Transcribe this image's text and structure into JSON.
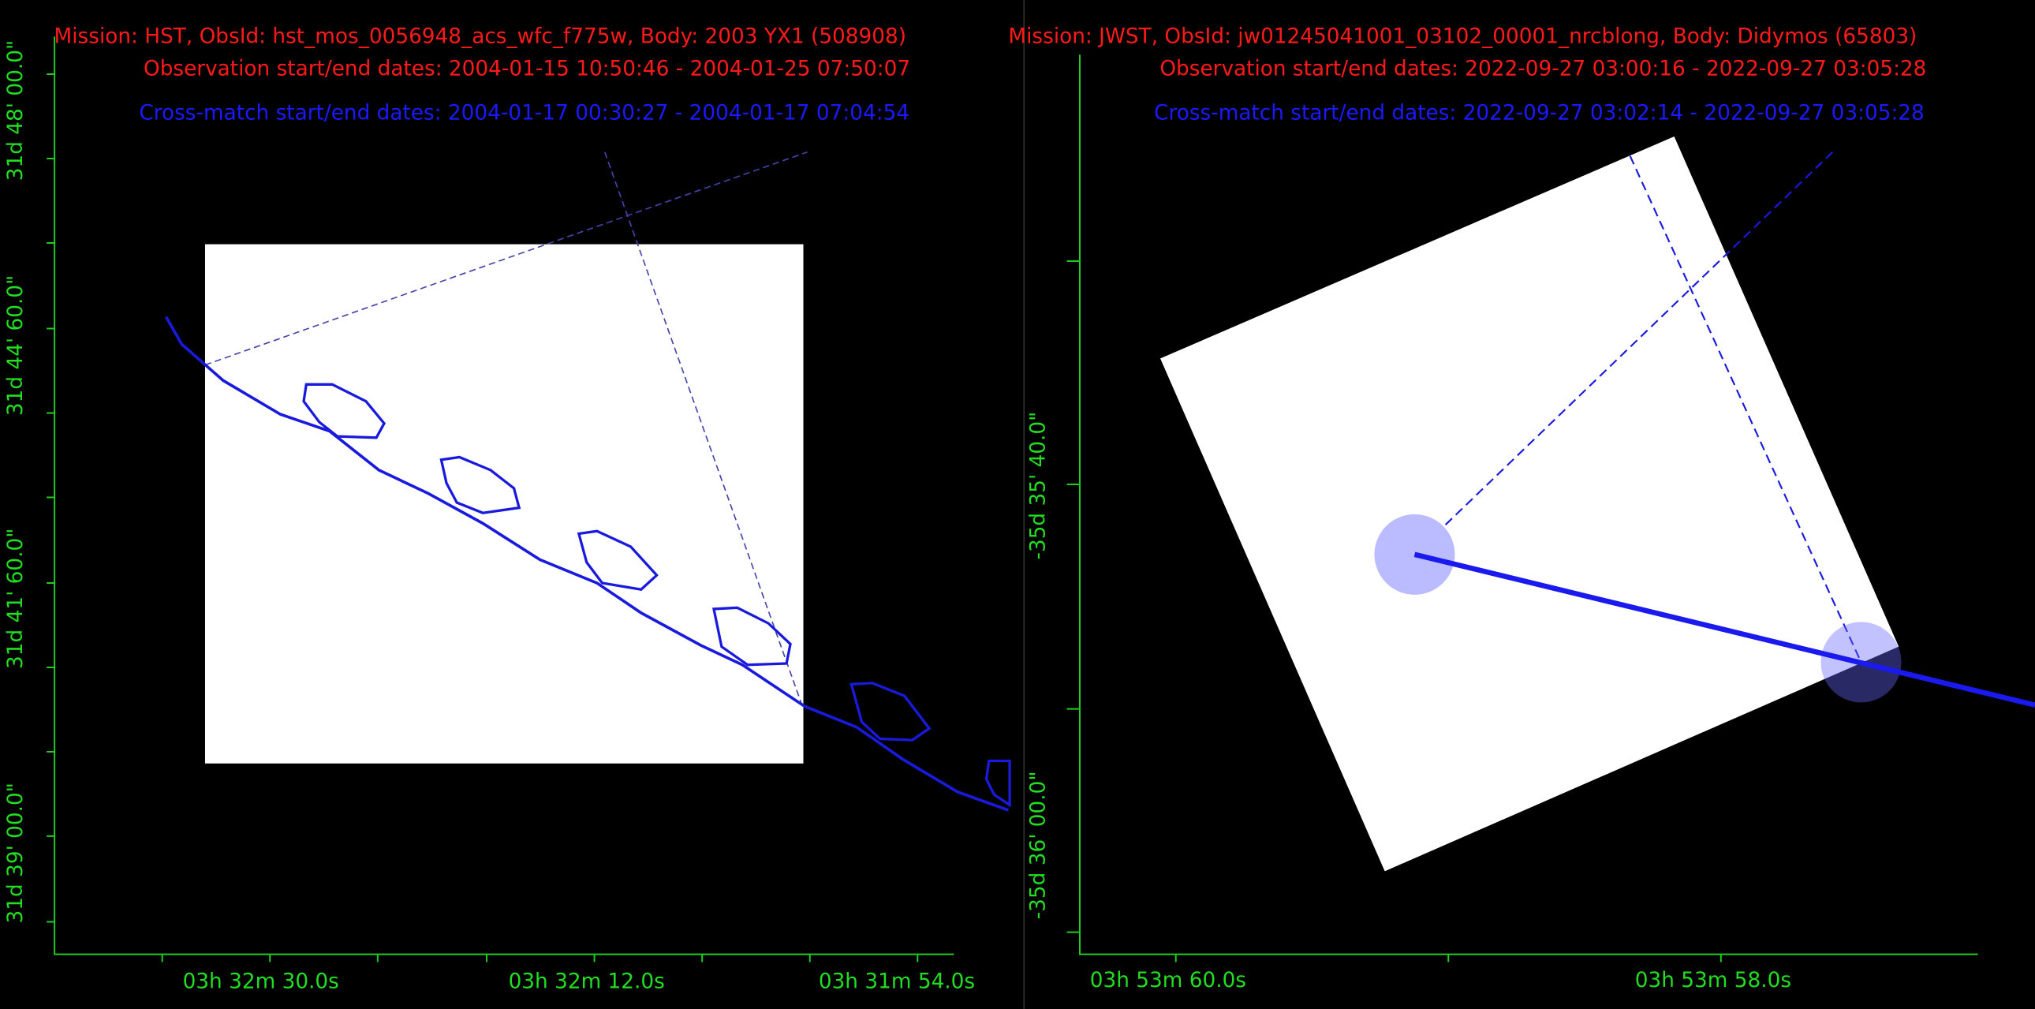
{
  "panels": [
    {
      "mission_line": "Mission: HST, ObsId: hst_mos_0056948_acs_wfc_f775w, Body: 2003 YX1 (508908)",
      "observation_dates": "Observation start/end dates: 2004-01-15 10:50:46 - 2004-01-25 07:50:07",
      "crossmatch_dates": "Cross-match start/end dates: 2004-01-17 00:30:27 - 2004-01-17 07:04:54",
      "y_labels": [
        "31d 48' 00.0\"",
        "31d 44' 60.0\"",
        "31d 41' 60.0\"",
        "31d 39' 00.0\""
      ],
      "x_labels": [
        "03h 32m 30.0s",
        "03h 32m 12.0s",
        "03h 31m 54.0s"
      ]
    },
    {
      "mission_line": "Mission: JWST, ObsId: jw01245041001_03102_00001_nrcblong, Body: Didymos (65803)",
      "observation_dates": "Observation start/end dates: 2022-09-27 03:00:16 - 2022-09-27 03:05:28",
      "crossmatch_dates": "Cross-match start/end dates: 2022-09-27 03:02:14 - 2022-09-27 03:05:28",
      "y_labels": [
        "-35d 35' 40.0\"",
        "-35d 36' 00.0\""
      ],
      "x_labels": [
        "03h 53m 60.0s",
        "03h 53m 58.0s"
      ]
    }
  ]
}
